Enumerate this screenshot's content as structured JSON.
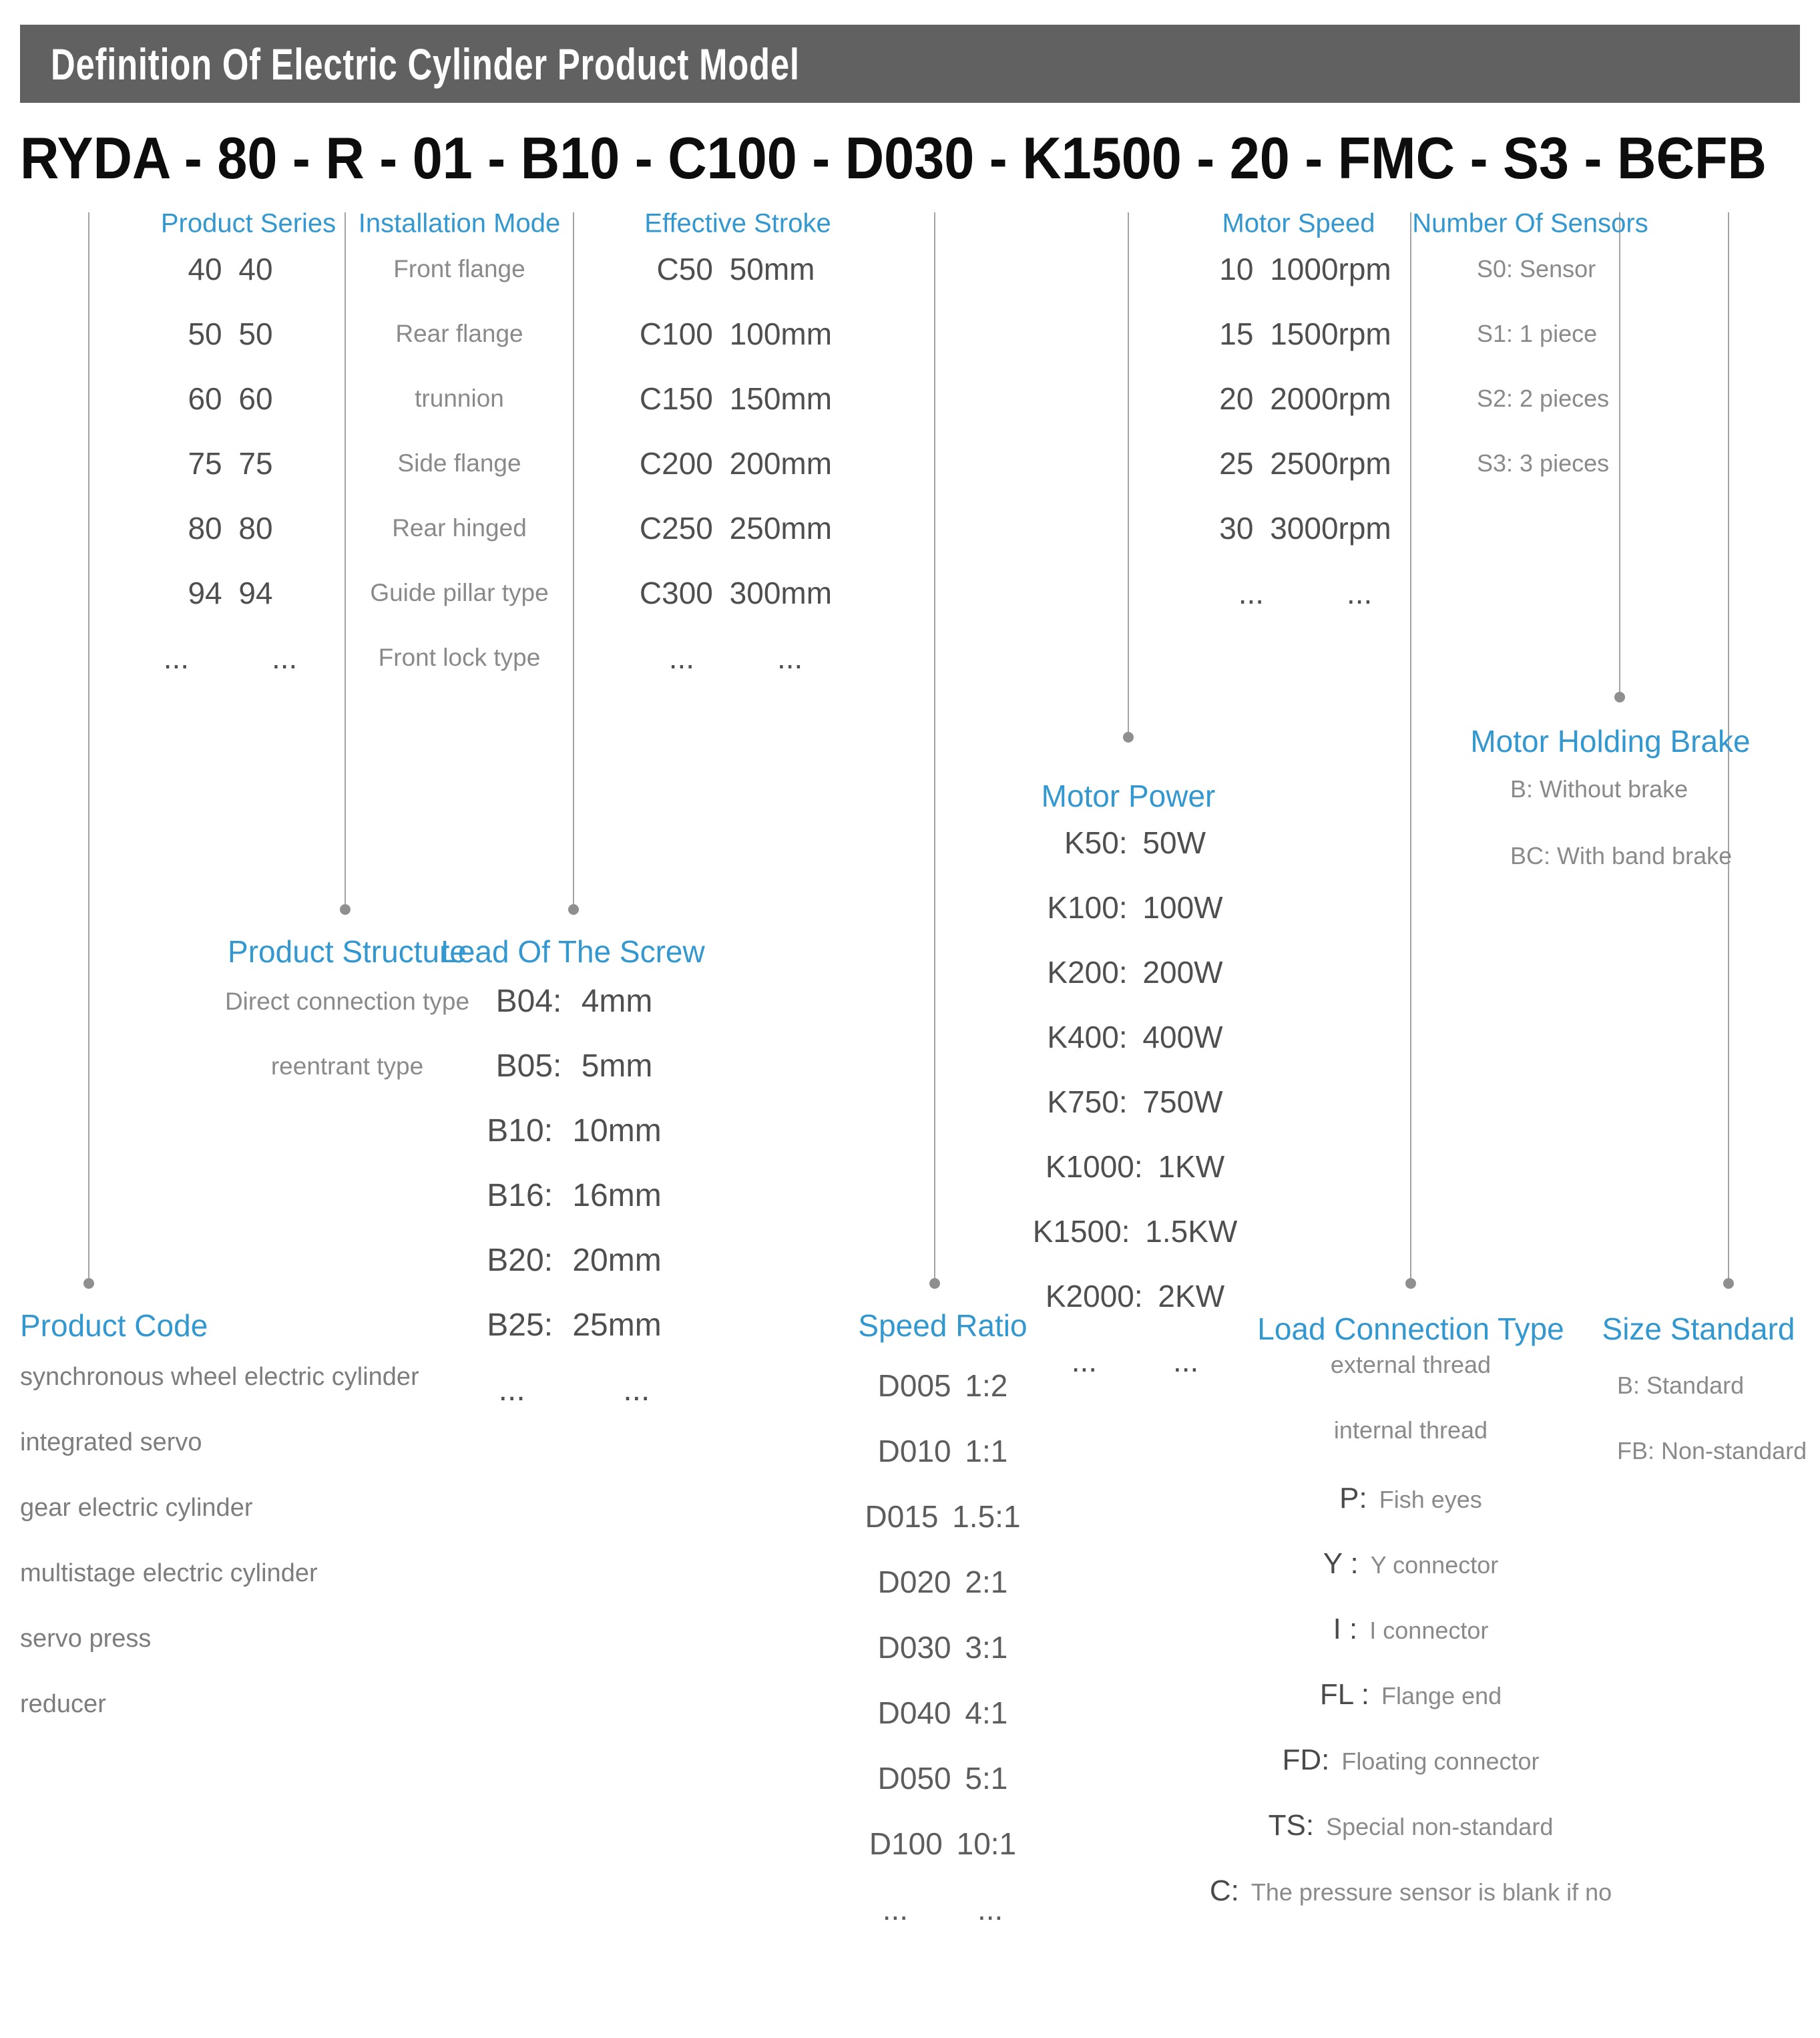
{
  "colors": {
    "accent_blue": "#3398cf",
    "title_bar_gray": "#616161",
    "text_dark": "#4f4f4f",
    "text_light": "#8a8a8a",
    "line_gray": "#a3a3a3",
    "code_black": "#0d0d0d"
  },
  "title_bar": {
    "title": "Definition Of Electric Cylinder Product Model"
  },
  "model_code": {
    "text": "RYDA - 80 - R - 01 - B10 - C100 - D030 - K1500 - 20 - FMC - S3 - BЄFB",
    "segments": [
      "RYDA",
      "80",
      "R",
      "01",
      "B10",
      "C100",
      "D030",
      "K1500",
      "20",
      "FMC",
      "S3",
      "BЄFB"
    ]
  },
  "sections": {
    "product_series": {
      "title": "Product Series",
      "items": [
        "40 40",
        "50 50",
        "60 60",
        "75 75",
        "80 80",
        "94 94",
        "...     ..."
      ]
    },
    "installation_mode": {
      "title": "Installation Mode",
      "items": [
        "Front flange",
        "Rear flange",
        "trunnion",
        "Side flange",
        "Rear hinged",
        "Guide pillar type",
        "Front lock type"
      ]
    },
    "effective_stroke": {
      "title": "Effective Stroke",
      "items": [
        "C50 50mm",
        "C100 100mm",
        "C150 150mm",
        "C200 200mm",
        "C250 250mm",
        "C300 300mm",
        "...     ..."
      ]
    },
    "motor_speed": {
      "title": "Motor Speed",
      "items": [
        "10 1000rpm",
        "15 1500rpm",
        "20 2000rpm",
        "25 2500rpm",
        "30 3000rpm",
        "...     ..."
      ]
    },
    "number_of_sensors": {
      "title": "Number Of Sensors",
      "items": [
        "S0: Sensor",
        "S1: 1 piece",
        "S2: 2 pieces",
        "S3: 3 pieces"
      ]
    },
    "motor_power": {
      "title": "Motor Power",
      "items": [
        "K50: 50W",
        "K100: 100W",
        "K200: 200W",
        "K400: 400W",
        "K750: 750W",
        "K1000: 1KW",
        "K1500: 1.5KW",
        "K2000: 2KW",
        "...     ..."
      ]
    },
    "motor_holding_brake": {
      "title": "Motor Holding Brake",
      "items": [
        "B: Without brake",
        "BC: With band brake"
      ]
    },
    "product_structure": {
      "title": "Product Structure",
      "items": [
        "Direct connection type",
        "reentrant type"
      ]
    },
    "lead_of_the_screw": {
      "title": "Lead Of The Screw",
      "items": [
        "B04: 4mm",
        "B05: 5mm",
        "B10: 10mm",
        "B16: 16mm",
        "B20: 20mm",
        "B25: 25mm",
        "...     ..."
      ]
    },
    "product_code": {
      "title": "Product Code",
      "items": [
        "synchronous wheel electric cylinder",
        "integrated servo",
        "gear electric cylinder",
        "multistage electric cylinder",
        "servo press",
        "reducer"
      ]
    },
    "speed_ratio": {
      "title": "Speed Ratio",
      "items": [
        "D005 1:2",
        "D010 1:1",
        "D015 1.5:1",
        "D020 2:1",
        "D030 3:1",
        "D040 4:1",
        "D050 5:1",
        "D100 10:1",
        "...     ..."
      ]
    },
    "load_connection_type": {
      "title": "Load Connection Type",
      "items": [
        {
          "code": "",
          "label": "external thread"
        },
        {
          "code": "",
          "label": "internal thread"
        },
        {
          "code": "P:",
          "label": "Fish eyes"
        },
        {
          "code": "Y :",
          "label": "Y connector"
        },
        {
          "code": "I :",
          "label": "I connector"
        },
        {
          "code": "FL :",
          "label": "Flange end"
        },
        {
          "code": "FD:",
          "label": "Floating connector"
        },
        {
          "code": "TS:",
          "label": "Special non-standard"
        },
        {
          "code": "C:",
          "label": "The pressure sensor is blank if no"
        }
      ]
    },
    "size_standard": {
      "title": "Size Standard",
      "items": [
        "B: Standard",
        "FB: Non-standard"
      ]
    }
  }
}
